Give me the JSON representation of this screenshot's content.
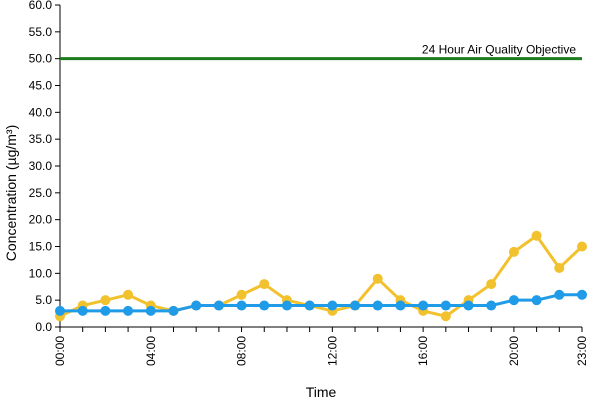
{
  "chart_data": {
    "type": "line",
    "title": "",
    "xlabel": "Time",
    "ylabel": "Concentration (µg/m³)",
    "ylim": [
      0,
      60
    ],
    "yticks": [
      "0.0",
      "5.0",
      "10.0",
      "15.0",
      "20.0",
      "25.0",
      "30.0",
      "35.0",
      "40.0",
      "45.0",
      "50.0",
      "55.0",
      "60.0"
    ],
    "x": [
      "00:00",
      "01:00",
      "02:00",
      "03:00",
      "04:00",
      "05:00",
      "06:00",
      "07:00",
      "08:00",
      "09:00",
      "10:00",
      "11:00",
      "12:00",
      "13:00",
      "14:00",
      "15:00",
      "16:00",
      "17:00",
      "18:00",
      "19:00",
      "20:00",
      "21:00",
      "22:00",
      "23:00"
    ],
    "xtick_labels": [
      "00:00",
      "04:00",
      "08:00",
      "12:00",
      "16:00",
      "20:00",
      "23:00"
    ],
    "grid": false,
    "legend": "none",
    "series": [
      {
        "color": "#f2c12e",
        "values": [
          2,
          4,
          5,
          6,
          4,
          3,
          4,
          4,
          6,
          8,
          5,
          4,
          3,
          4,
          9,
          5,
          3,
          2,
          5,
          8,
          14,
          17,
          11,
          15
        ]
      },
      {
        "color": "#1f9be8",
        "values": [
          3,
          3,
          3,
          3,
          3,
          3,
          4,
          4,
          4,
          4,
          4,
          4,
          4,
          4,
          4,
          4,
          4,
          4,
          4,
          4,
          5,
          5,
          6,
          6
        ]
      }
    ],
    "reference_line": {
      "value": 50,
      "label": "24 Hour Air Quality Objective",
      "color": "#1e7b1e"
    }
  }
}
